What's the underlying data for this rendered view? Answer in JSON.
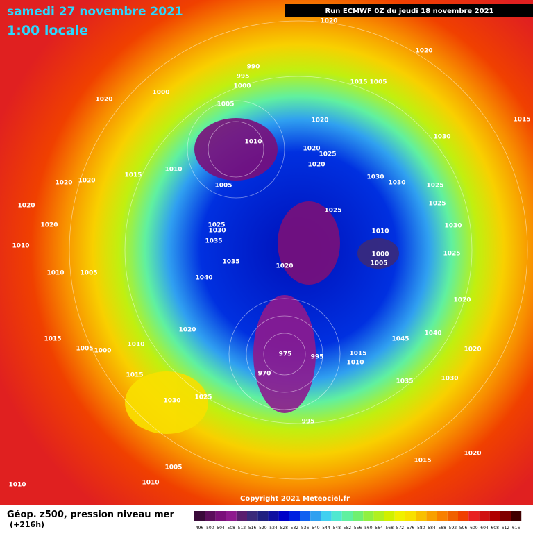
{
  "header": {
    "title": "samedi 27 novembre 2021",
    "time": "1:00 locale",
    "run": "Run ECMWF 0Z du jeudi 18 novembre 2021"
  },
  "copyright": "Copyright 2021 Meteociel.fr",
  "footer": {
    "caption": "Géop. z500, pression niveau mer",
    "lead": "(+216h)"
  },
  "isobars": [
    990,
    995,
    1000,
    1000,
    1005,
    1020,
    1020,
    1020,
    1015,
    1005,
    1015,
    1020,
    1010,
    1020,
    1025,
    1020,
    1030,
    1030,
    1030,
    1010,
    1015,
    1020,
    1020,
    1005,
    1020,
    1020,
    1025,
    1025,
    1030,
    1035,
    1010,
    1000,
    1005,
    1020,
    1035,
    1040,
    1005,
    1010,
    1010,
    1020,
    1015,
    1005,
    1000,
    1010,
    1015,
    975,
    995,
    970,
    1010,
    1015,
    1045,
    1040,
    1035,
    1030,
    1020,
    1030,
    1025,
    995,
    1005,
    1010,
    1010,
    1015,
    1020,
    1025,
    1025,
    1025,
    1020,
    1030
  ],
  "legend": {
    "labels": [
      496,
      500,
      504,
      508,
      512,
      516,
      520,
      524,
      528,
      532,
      536,
      540,
      544,
      548,
      552,
      556,
      560,
      564,
      568,
      572,
      576,
      580,
      584,
      588,
      592,
      596,
      600,
      604,
      608,
      612,
      616
    ],
    "colors": [
      "#3a0a3a",
      "#5c0e5c",
      "#7a107a",
      "#8e1a8e",
      "#5a1e6e",
      "#3a2a7a",
      "#202080",
      "#1010a0",
      "#0000c8",
      "#0020e0",
      "#1060f0",
      "#30a0f0",
      "#40d0f0",
      "#50e8d0",
      "#60f0a0",
      "#70f070",
      "#90f040",
      "#b0f020",
      "#d0f000",
      "#f0f000",
      "#f8e000",
      "#f8c000",
      "#f8a000",
      "#f88000",
      "#f06000",
      "#f04000",
      "#e82020",
      "#d01010",
      "#b00000",
      "#800000",
      "#400000"
    ]
  }
}
